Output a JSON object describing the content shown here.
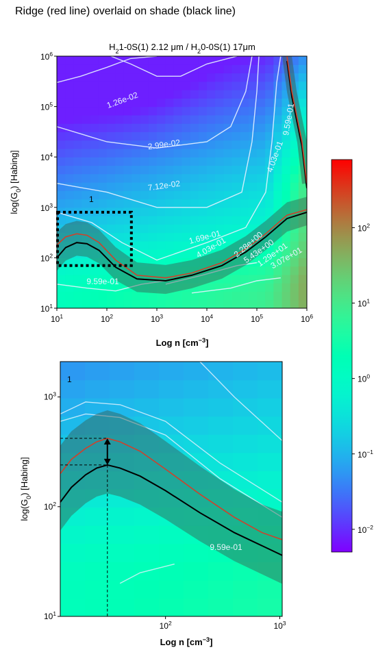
{
  "figure_title": "Ridge (red line) overlaid on shade (black line)",
  "colors": {
    "ridge": "#d0402a",
    "shade_line": "#000000",
    "shade_band": "#3a5a50",
    "contour": "#e6f2ff"
  },
  "chart_data": [
    {
      "type": "heatmap",
      "title_parts": [
        "H",
        "2",
        "1-0S(1) 2.12 ",
        "μ",
        "m / H",
        "2",
        "0-0S(1) 17",
        "μ",
        "m"
      ],
      "xlabel_main": "Log n ",
      "xlabel_unit": "[cm",
      "xlabel_exp": "−3",
      "xlabel_close": "]",
      "ylabel_main": "log(G",
      "ylabel_sub": "0",
      "ylabel_rest": ") [Habing]",
      "x_scale": "log",
      "y_scale": "log",
      "xlim": [
        10,
        1000000
      ],
      "ylim": [
        10,
        1000000
      ],
      "x_ticks": [
        {
          "base": "10",
          "exp": "1"
        },
        {
          "base": "10",
          "exp": "2"
        },
        {
          "base": "10",
          "exp": "3"
        },
        {
          "base": "10",
          "exp": "4"
        },
        {
          "base": "10",
          "exp": "5"
        },
        {
          "base": "10",
          "exp": "6"
        }
      ],
      "y_ticks": [
        {
          "base": "10",
          "exp": "1"
        },
        {
          "base": "10",
          "exp": "2"
        },
        {
          "base": "10",
          "exp": "3"
        },
        {
          "base": "10",
          "exp": "4"
        },
        {
          "base": "10",
          "exp": "5"
        },
        {
          "base": "10",
          "exp": "6"
        }
      ],
      "contour_labels": [
        "1.26e-02",
        "2.99e-02",
        "7.12e-02",
        "1.69e-01",
        "4.03e-01",
        "9.59e-01",
        "9.59e-01",
        "4.03e-01",
        "2.28e+00",
        "5.43e+00",
        "1.29e+01",
        "3.07e+01"
      ],
      "ridge": {
        "x": [
          10,
          15,
          25,
          40,
          70,
          150,
          400,
          1500,
          5000,
          20000,
          60000,
          150000,
          400000,
          1000000
        ],
        "y": [
          180,
          260,
          300,
          280,
          200,
          90,
          45,
          40,
          50,
          80,
          150,
          300,
          700,
          900
        ]
      },
      "shade": {
        "x": [
          10,
          15,
          25,
          40,
          70,
          150,
          400,
          1500,
          5000,
          20000,
          60000,
          150000,
          400000,
          1000000
        ],
        "y": [
          100,
          160,
          200,
          190,
          140,
          65,
          38,
          35,
          45,
          70,
          130,
          260,
          600,
          800
        ]
      },
      "ridge_upper": {
        "x": [
          400000,
          500000,
          800000,
          1000000
        ],
        "y": [
          1000000,
          200000,
          20000,
          3000
        ]
      },
      "zoom_box": {
        "label": "1",
        "x": [
          10,
          300
        ],
        "y": [
          70,
          800
        ]
      }
    },
    {
      "type": "heatmap",
      "inset_label": "1",
      "xlabel_main": "Log n ",
      "xlabel_unit": "[cm",
      "xlabel_exp": "−3",
      "xlabel_close": "]",
      "ylabel_main": "log(G",
      "ylabel_sub": "0",
      "ylabel_rest": ") [Habing]",
      "x_scale": "log",
      "y_scale": "log",
      "xlim": [
        12,
        1050
      ],
      "ylim": [
        10,
        2100
      ],
      "x_ticks": [
        {
          "base": "10",
          "exp": "2"
        },
        {
          "base": "10",
          "exp": "3"
        }
      ],
      "y_ticks": [
        {
          "base": "10",
          "exp": "1"
        },
        {
          "base": "10",
          "exp": "2"
        },
        {
          "base": "10",
          "exp": "3"
        }
      ],
      "contour_labels": [
        "9.59e-01"
      ],
      "ridge": {
        "x": [
          12,
          15,
          20,
          25,
          31,
          40,
          60,
          100,
          200,
          400,
          700,
          1050
        ],
        "y": [
          200,
          270,
          340,
          390,
          420,
          390,
          320,
          220,
          130,
          80,
          58,
          50
        ]
      },
      "shade": {
        "x": [
          12,
          15,
          20,
          25,
          31,
          40,
          60,
          100,
          200,
          400,
          700,
          1050
        ],
        "y": [
          110,
          150,
          195,
          225,
          240,
          225,
          190,
          140,
          88,
          58,
          44,
          36
        ]
      },
      "marker": {
        "x": 31,
        "y_top": 420,
        "y_bottom": 240
      }
    }
  ],
  "colorbar": {
    "scale": "log",
    "lim": [
      0.005,
      800
    ],
    "ticks": [
      {
        "base": "10",
        "exp": "2"
      },
      {
        "base": "10",
        "exp": "1"
      },
      {
        "base": "10",
        "exp": "0"
      },
      {
        "base": "10",
        "exp": "−1"
      },
      {
        "base": "10",
        "exp": "−2"
      }
    ],
    "tick_values": [
      100,
      10,
      1,
      0.1,
      0.01
    ],
    "colormap": "rainbow"
  }
}
